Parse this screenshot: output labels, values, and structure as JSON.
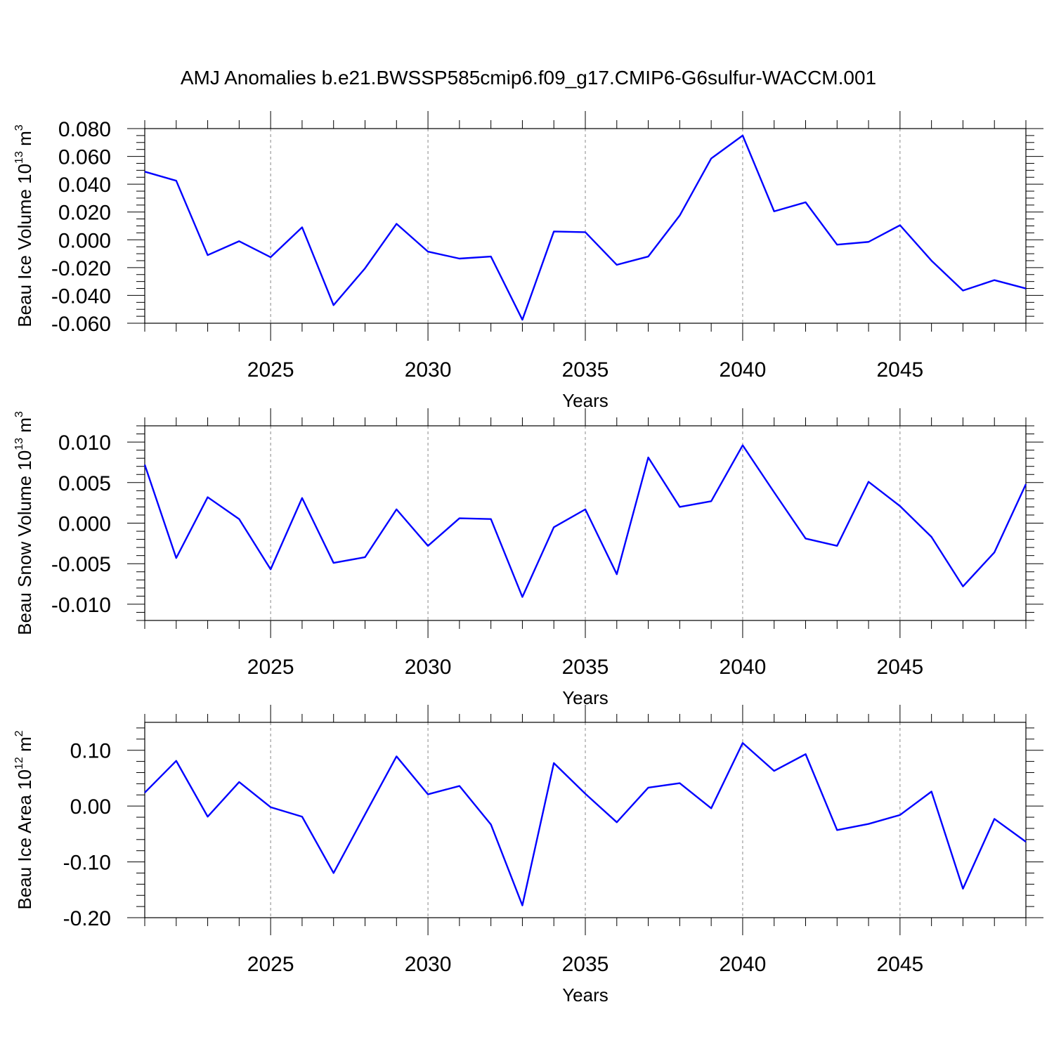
{
  "title": "AMJ Anomalies b.e21.BWSSP585cmip6.f09_g17.CMIP6-G6sulfur-WACCM.001",
  "colors": {
    "line": "#0000ff",
    "axis": "#000000",
    "grid": "#888888"
  },
  "chart_data": [
    {
      "type": "line",
      "xlabel": "Years",
      "ylabel": {
        "base": "Beau Ice Volume 10",
        "exp": "13",
        "unit": " m",
        "unit_exp": "3"
      },
      "x": [
        2021,
        2022,
        2023,
        2024,
        2025,
        2026,
        2027,
        2028,
        2029,
        2030,
        2031,
        2032,
        2033,
        2034,
        2035,
        2036,
        2037,
        2038,
        2039,
        2040,
        2041,
        2042,
        2043,
        2044,
        2045,
        2046,
        2047,
        2048,
        2049
      ],
      "values": [
        0.049,
        0.0425,
        -0.011,
        -0.001,
        -0.0125,
        0.009,
        -0.047,
        -0.0205,
        0.0115,
        -0.0085,
        -0.0135,
        -0.012,
        -0.0575,
        0.006,
        0.0055,
        -0.018,
        -0.012,
        0.0175,
        0.0585,
        0.075,
        0.0205,
        0.027,
        -0.0035,
        -0.0015,
        0.0105,
        -0.015,
        -0.0365,
        -0.029,
        -0.035
      ],
      "xlim": [
        2021,
        2049
      ],
      "ylim": [
        -0.06,
        0.08
      ],
      "xticks": [
        2025,
        2030,
        2035,
        2040,
        2045
      ],
      "xtick_labels": [
        "2025",
        "2030",
        "2035",
        "2040",
        "2045"
      ],
      "yticks": [
        -0.06,
        -0.04,
        -0.02,
        0.0,
        0.02,
        0.04,
        0.06,
        0.08
      ],
      "ytick_labels": [
        "-0.060",
        "-0.040",
        "-0.020",
        "0.000",
        "0.020",
        "0.040",
        "0.060",
        "0.080"
      ],
      "yminor_step": 0.005
    },
    {
      "type": "line",
      "xlabel": "Years",
      "ylabel": {
        "base": "Beau Snow Volume 10",
        "exp": "13",
        "unit": " m",
        "unit_exp": "3"
      },
      "x": [
        2021,
        2022,
        2023,
        2024,
        2025,
        2026,
        2027,
        2028,
        2029,
        2030,
        2031,
        2032,
        2033,
        2034,
        2035,
        2036,
        2037,
        2038,
        2039,
        2040,
        2041,
        2042,
        2043,
        2044,
        2045,
        2046,
        2047,
        2048,
        2049
      ],
      "values": [
        0.0072,
        -0.0043,
        0.0032,
        0.0005,
        -0.0057,
        0.0031,
        -0.0049,
        -0.0042,
        0.0017,
        -0.0028,
        0.0006,
        0.0005,
        -0.0091,
        -0.0005,
        0.0017,
        -0.0063,
        0.0081,
        0.002,
        0.0027,
        0.0096,
        0.0038,
        -0.0019,
        -0.0028,
        0.0051,
        0.0021,
        -0.0017,
        -0.0078,
        -0.0036,
        0.0048
      ],
      "xlim": [
        2021,
        2049
      ],
      "ylim": [
        -0.012,
        0.012
      ],
      "xticks": [
        2025,
        2030,
        2035,
        2040,
        2045
      ],
      "xtick_labels": [
        "2025",
        "2030",
        "2035",
        "2040",
        "2045"
      ],
      "yticks": [
        -0.01,
        -0.005,
        0.0,
        0.005,
        0.01
      ],
      "ytick_labels": [
        "-0.010",
        "-0.005",
        "0.000",
        "0.005",
        "0.010"
      ],
      "yminor_step": 0.001
    },
    {
      "type": "line",
      "xlabel": "Years",
      "ylabel": {
        "base": "Beau Ice Area 10",
        "exp": "12",
        "unit": " m",
        "unit_exp": "2"
      },
      "x": [
        2021,
        2022,
        2023,
        2024,
        2025,
        2026,
        2027,
        2028,
        2029,
        2030,
        2031,
        2032,
        2033,
        2034,
        2035,
        2036,
        2037,
        2038,
        2039,
        2040,
        2041,
        2042,
        2043,
        2044,
        2045,
        2046,
        2047,
        2048,
        2049
      ],
      "values": [
        0.024,
        0.081,
        -0.019,
        0.043,
        -0.002,
        -0.019,
        -0.12,
        -0.015,
        0.089,
        0.021,
        0.036,
        -0.033,
        -0.178,
        0.077,
        0.022,
        -0.029,
        0.033,
        0.041,
        -0.004,
        0.113,
        0.063,
        0.093,
        -0.043,
        -0.032,
        -0.016,
        0.026,
        -0.148,
        -0.023,
        -0.064
      ],
      "xlim": [
        2021,
        2049
      ],
      "ylim": [
        -0.2,
        0.15
      ],
      "xticks": [
        2025,
        2030,
        2035,
        2040,
        2045
      ],
      "xtick_labels": [
        "2025",
        "2030",
        "2035",
        "2040",
        "2045"
      ],
      "yticks": [
        -0.2,
        -0.1,
        0.0,
        0.1
      ],
      "ytick_labels": [
        "-0.20",
        "-0.10",
        "0.00",
        "0.10"
      ],
      "yminor_step": 0.02
    }
  ]
}
